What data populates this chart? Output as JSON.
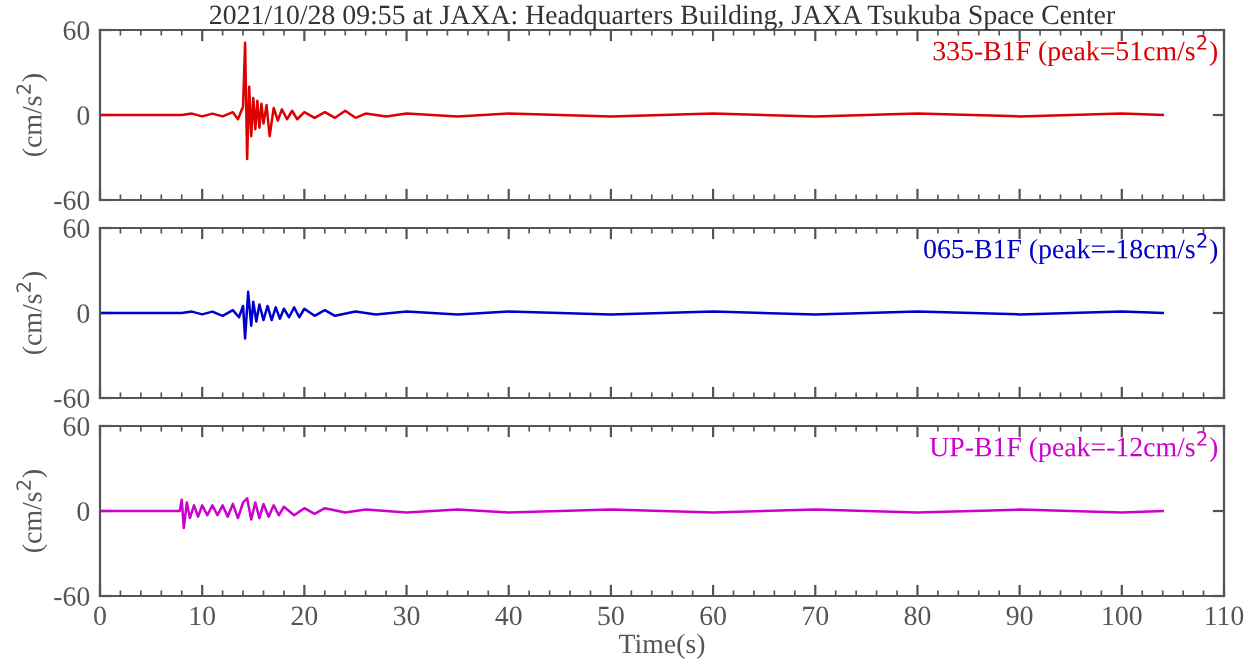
{
  "chart_data": [
    {
      "type": "line",
      "title": "2021/10/28 09:55 at JAXA: Headquarters Building, JAXA Tsukuba Space Center",
      "ylabel": "(cm/s$^{2}$)",
      "annotations": [
        "335-B1F (peak=51cm/s$^{2}$)"
      ],
      "xlim": [
        0,
        110
      ],
      "xticks": [
        0,
        10,
        20,
        30,
        40,
        50,
        60,
        70,
        80,
        90,
        100,
        110
      ],
      "ylim": [
        -60,
        60
      ],
      "yticks": [
        -60,
        0,
        60
      ],
      "tick_labels": "y",
      "grid": false,
      "legend": false,
      "series": [
        {
          "color": "#dd0000",
          "x": [
            0,
            8,
            9,
            10,
            11,
            12,
            13,
            13.5,
            14,
            14.2,
            14.4,
            14.6,
            14.8,
            15,
            15.2,
            15.4,
            15.6,
            15.8,
            16,
            16.3,
            16.6,
            17,
            17.4,
            17.8,
            18.3,
            18.8,
            19.3,
            20,
            21,
            22,
            23,
            24,
            25,
            26,
            28,
            30,
            35,
            40,
            50,
            60,
            70,
            80,
            90,
            100,
            104
          ],
          "values": [
            0,
            0,
            1,
            -1,
            1,
            -1,
            2,
            -3,
            6,
            51,
            -31,
            20,
            -15,
            12,
            -10,
            10,
            -9,
            8,
            -6,
            7,
            -15,
            5,
            -4,
            4,
            -3,
            3,
            -3,
            2,
            -2,
            2,
            -2,
            3,
            -2,
            1,
            -1,
            1,
            -1,
            1,
            -1,
            1,
            -1,
            1,
            -1,
            1,
            0
          ]
        }
      ]
    },
    {
      "type": "line",
      "ylabel": "(cm/s$^{2}$)",
      "annotations": [
        "065-B1F (peak=-18cm/s$^{2}$)"
      ],
      "xlim": [
        0,
        110
      ],
      "xticks": [
        0,
        10,
        20,
        30,
        40,
        50,
        60,
        70,
        80,
        90,
        100,
        110
      ],
      "ylim": [
        -60,
        60
      ],
      "yticks": [
        -60,
        0,
        60
      ],
      "tick_labels": "y",
      "grid": false,
      "legend": false,
      "series": [
        {
          "color": "#0000cc",
          "x": [
            0,
            8,
            9,
            10,
            11,
            12,
            13,
            13.6,
            14,
            14.2,
            14.5,
            14.8,
            15,
            15.3,
            15.6,
            16,
            16.4,
            16.8,
            17.2,
            17.6,
            18,
            18.5,
            19,
            19.5,
            20,
            21,
            22,
            23,
            25,
            27,
            30,
            35,
            40,
            50,
            60,
            70,
            80,
            90,
            100,
            104
          ],
          "values": [
            0,
            0,
            1,
            -1,
            1,
            -2,
            2,
            -3,
            5,
            -18,
            15,
            -9,
            8,
            -6,
            6,
            -5,
            5,
            -5,
            4,
            -4,
            3,
            -3,
            4,
            -3,
            3,
            -2,
            2,
            -2,
            1,
            -1,
            1,
            -1,
            1,
            -1,
            1,
            -1,
            1,
            -1,
            1,
            0
          ]
        }
      ]
    },
    {
      "type": "line",
      "ylabel": "(cm/s$^{2}$)",
      "xlabel": "Time(s)",
      "annotations": [
        "UP-B1F (peak=-12cm/s$^{2}$)"
      ],
      "xlim": [
        0,
        110
      ],
      "xticks": [
        0,
        10,
        20,
        30,
        40,
        50,
        60,
        70,
        80,
        90,
        100,
        110
      ],
      "ylim": [
        -60,
        60
      ],
      "yticks": [
        -60,
        0,
        60
      ],
      "grid": false,
      "legend": false,
      "series": [
        {
          "color": "#cc00cc",
          "x": [
            0,
            7.8,
            8,
            8.2,
            8.5,
            8.8,
            9.2,
            9.6,
            10,
            10.5,
            11,
            11.5,
            12,
            12.5,
            13,
            13.5,
            14,
            14.4,
            14.8,
            15.2,
            15.6,
            16,
            16.5,
            17,
            17.5,
            18,
            19,
            20,
            21,
            22,
            24,
            26,
            30,
            35,
            40,
            50,
            60,
            70,
            80,
            90,
            100,
            104
          ],
          "values": [
            0,
            0,
            8,
            -12,
            6,
            -5,
            4,
            -4,
            4,
            -3,
            4,
            -3,
            4,
            -4,
            5,
            -5,
            6,
            9,
            -6,
            6,
            -5,
            5,
            -4,
            4,
            -3,
            3,
            -3,
            2,
            -2,
            2,
            -1,
            1,
            -1,
            1,
            -1,
            1,
            -1,
            1,
            -1,
            1,
            -1,
            0
          ]
        }
      ]
    }
  ]
}
